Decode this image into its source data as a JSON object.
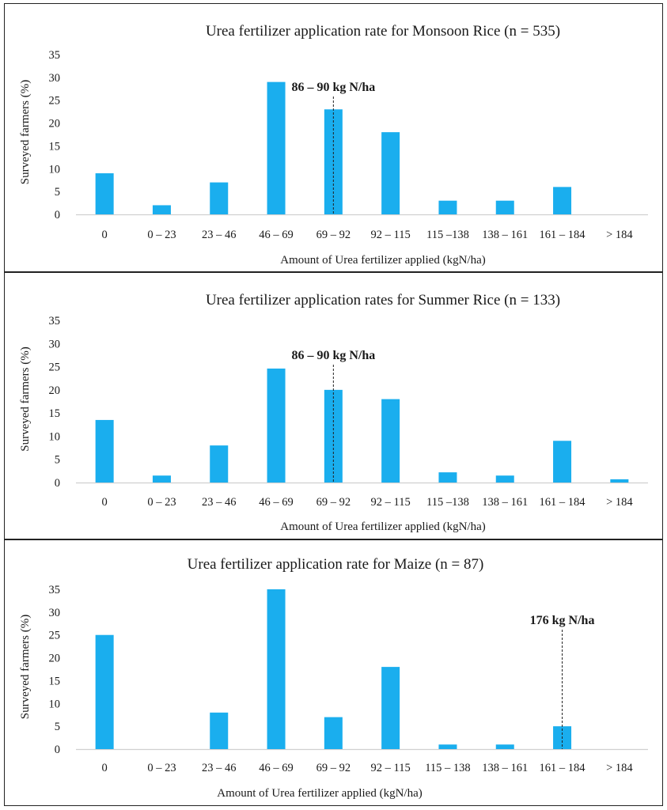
{
  "chart_data": [
    {
      "type": "bar",
      "title": "Urea fertilizer application rate for Monsoon Rice (n = 535)",
      "xlabel": "Amount of Urea fertilizer applied (kgN/ha)",
      "ylabel": "Surveyed farmers (%)",
      "ylim": [
        0,
        35
      ],
      "yticks": [
        0,
        5,
        10,
        15,
        20,
        25,
        30,
        35
      ],
      "categories": [
        "0",
        "0 – 23",
        "23 – 46",
        "46 – 69",
        "69 – 92",
        "92 – 115",
        "115 –138",
        "138 – 161",
        "161 – 184",
        "> 184"
      ],
      "values": [
        9,
        2,
        7,
        29,
        23,
        18,
        3,
        3,
        6,
        0
      ],
      "annotation": {
        "text": "86 – 90 kg N/ha",
        "category_index": 4
      },
      "grid": false,
      "bar_color": "#1aaeee"
    },
    {
      "type": "bar",
      "title": "Urea fertilizer application rates for Summer Rice (n = 133)",
      "xlabel": "Amount of Urea fertilizer applied (kgN/ha)",
      "ylabel": "Surveyed farmers (%)",
      "ylim": [
        0,
        35
      ],
      "yticks": [
        0,
        5,
        10,
        15,
        20,
        25,
        30,
        35
      ],
      "categories": [
        "0",
        "0 – 23",
        "23 – 46",
        "46 – 69",
        "69 – 92",
        "92 – 115",
        "115 –138",
        "138 – 161",
        "161 – 184",
        "> 184"
      ],
      "values": [
        13.5,
        1.5,
        8,
        24.6,
        20,
        18,
        2.2,
        1.5,
        9,
        0.7
      ],
      "annotation": {
        "text": "86 – 90 kg N/ha",
        "category_index": 4
      },
      "grid": false,
      "bar_color": "#1aaeee"
    },
    {
      "type": "bar",
      "title": "Urea fertilizer application rate for Maize (n = 87)",
      "xlabel": "Amount of Urea fertilizer applied (kgN/ha)",
      "ylabel": "Surveyed farmers (%)",
      "ylim": [
        0,
        35
      ],
      "yticks": [
        0,
        5,
        10,
        15,
        20,
        25,
        30,
        35
      ],
      "categories": [
        "0",
        "0 – 23",
        "23 – 46",
        "46 – 69",
        "69 – 92",
        "92 – 115",
        "115 – 138",
        "138 – 161",
        "161 – 184",
        "> 184"
      ],
      "values": [
        25,
        0,
        8,
        35,
        7,
        18,
        1,
        1,
        5,
        0
      ],
      "annotation": {
        "text": "176 kg N/ha",
        "category_index": 8
      },
      "grid": false,
      "bar_color": "#1aaeee"
    }
  ]
}
